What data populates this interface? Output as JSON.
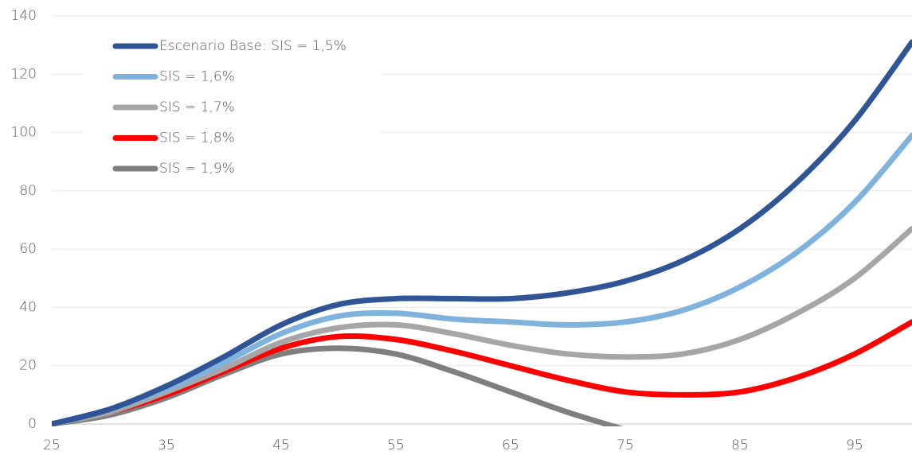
{
  "chart_data": {
    "type": "line",
    "x": [
      25,
      30,
      35,
      40,
      45,
      50,
      55,
      60,
      65,
      70,
      75,
      80,
      85,
      90,
      95,
      100
    ],
    "series": [
      {
        "name": "Escenario Base: SIS = 1,5%",
        "color": "#2f5597",
        "values": [
          0,
          5,
          13,
          23,
          34,
          41,
          43,
          43,
          43,
          45,
          49,
          56,
          67,
          83,
          104,
          131
        ]
      },
      {
        "name": "SIS = 1,6%",
        "color": "#7fb2dd",
        "values": [
          0,
          5,
          12,
          21,
          31,
          37,
          38,
          36,
          35,
          34,
          35,
          39,
          47,
          59,
          76,
          99
        ]
      },
      {
        "name": "SIS = 1,7%",
        "color": "#a6a6a6",
        "values": [
          0,
          4,
          11,
          19,
          28,
          33,
          34,
          31,
          27,
          24,
          23,
          24,
          29,
          38,
          50,
          67
        ]
      },
      {
        "name": "SIS = 1,8%",
        "color": "#ff0000",
        "values": [
          0,
          4,
          10,
          18,
          26,
          30,
          29,
          25,
          20,
          15,
          11,
          10,
          11,
          16,
          24,
          35
        ]
      },
      {
        "name": "SIS = 1,9%",
        "color": "#7f7f7f",
        "values": [
          0,
          3,
          9,
          17,
          24,
          26,
          24,
          18,
          11,
          4,
          -2,
          null,
          null,
          null,
          null,
          null
        ]
      }
    ],
    "xlim": [
      25,
      100
    ],
    "xticks": [
      25,
      35,
      45,
      55,
      65,
      75,
      85,
      95
    ],
    "ylim": [
      0,
      140
    ],
    "yticks": [
      0,
      20,
      40,
      60,
      80,
      100,
      120,
      140
    ],
    "grid": true,
    "legend": "top-left"
  }
}
